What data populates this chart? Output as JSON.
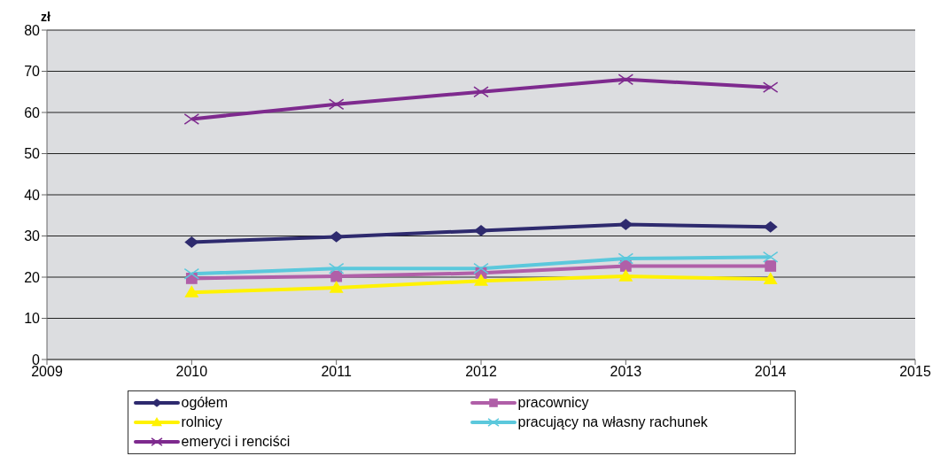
{
  "chart_data": {
    "type": "line",
    "ylabel": "zł",
    "x": [
      2010,
      2011,
      2012,
      2013,
      2014
    ],
    "xlim": [
      2009,
      2015
    ],
    "xticks": [
      2009,
      2010,
      2011,
      2012,
      2013,
      2014,
      2015
    ],
    "ylim": [
      0,
      80
    ],
    "yticks": [
      0,
      10,
      20,
      30,
      40,
      50,
      60,
      70,
      80
    ],
    "grid": "y",
    "legend": "bottom",
    "line_style": "solid",
    "series": [
      {
        "name": "ogółem",
        "color": "#2e2a6e",
        "marker": "diamond",
        "values": [
          28.5,
          29.8,
          31.3,
          32.8,
          32.2
        ]
      },
      {
        "name": "pracownicy",
        "color": "#b05fa8",
        "marker": "square",
        "values": [
          19.7,
          20.2,
          21.0,
          22.7,
          22.7
        ]
      },
      {
        "name": "rolnicy",
        "color": "#fff200",
        "marker": "triangle",
        "values": [
          16.3,
          17.4,
          19.1,
          20.2,
          19.5
        ]
      },
      {
        "name": "pracujący na własny rachunek",
        "color": "#5bc8dc",
        "marker": "cross",
        "values": [
          20.8,
          22.1,
          22.1,
          24.5,
          24.9
        ]
      },
      {
        "name": "emeryci i renciści",
        "color": "#7e2a8e",
        "marker": "cross",
        "values": [
          58.4,
          62.0,
          65.0,
          68.0,
          66.1
        ]
      }
    ]
  }
}
